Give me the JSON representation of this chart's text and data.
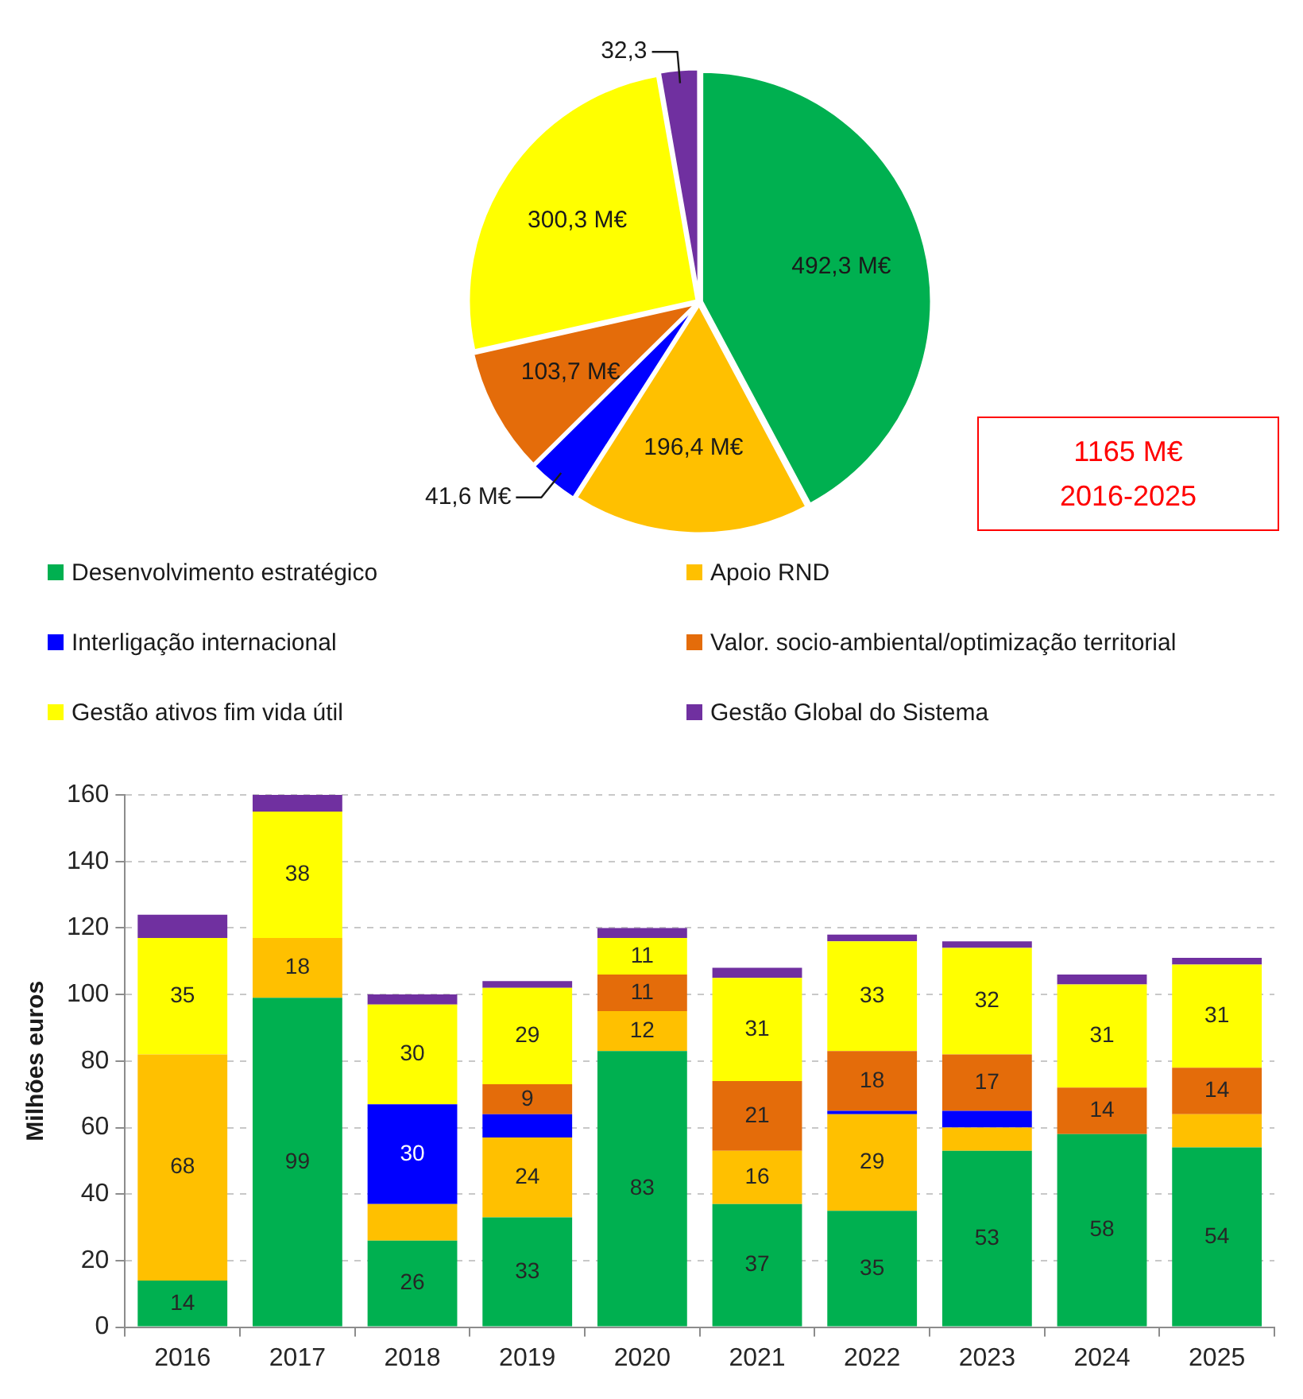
{
  "chart_data": [
    {
      "type": "pie",
      "categories": [
        "Desenvolvimento estratégico",
        "Apoio RND",
        "Interligação internacional",
        "Valor. socio-ambiental/optimização territorial",
        "Gestão ativos fim vida útil",
        "Gestão Global do Sistema"
      ],
      "values": [
        492.3,
        196.4,
        41.6,
        103.7,
        300.3,
        32.3
      ],
      "colors": [
        "#00b050",
        "#ffc000",
        "#0000ff",
        "#e46c0a",
        "#ffff00",
        "#7030a0"
      ],
      "value_labels": [
        "492,3 M€",
        "196,4 M€",
        "41,6 M€",
        "103,7 M€",
        "300,3 M€",
        "32,3"
      ],
      "legend": "bottom",
      "annotations": [
        "1165 M€ 2016-2025"
      ]
    },
    {
      "type": "bar",
      "categories": [
        "2016",
        "2017",
        "2018",
        "2019",
        "2020",
        "2021",
        "2022",
        "2023",
        "2024",
        "2025"
      ],
      "stacked": true,
      "ylabel": "Milhões euros",
      "ylim": [
        0,
        160
      ],
      "yticks": [
        0,
        20,
        40,
        60,
        80,
        100,
        120,
        140,
        160
      ],
      "grid": "y",
      "series": [
        {
          "color": "#00b050",
          "values": [
            14,
            99,
            26,
            33,
            83,
            37,
            35,
            53,
            58,
            54
          ],
          "value_labels": [
            "14",
            "99",
            "26",
            "33",
            "83",
            "37",
            "35",
            "53",
            "58",
            "54"
          ]
        },
        {
          "color": "#ffc000",
          "values": [
            68,
            18,
            11,
            24,
            12,
            16,
            29,
            7,
            0,
            10
          ],
          "value_labels": [
            "68",
            "18",
            null,
            "24",
            "12",
            "16",
            "29",
            null,
            null,
            null
          ]
        },
        {
          "color": "#0000ff",
          "values": [
            0,
            0,
            30,
            7,
            0,
            0,
            1,
            5,
            0,
            0
          ],
          "value_labels": [
            null,
            null,
            "30",
            null,
            null,
            null,
            null,
            null,
            null,
            null
          ]
        },
        {
          "color": "#e46c0a",
          "values": [
            0,
            0,
            0,
            9,
            11,
            21,
            18,
            17,
            14,
            14
          ],
          "value_labels": [
            null,
            null,
            null,
            "9",
            "11",
            "21",
            "18",
            "17",
            "14",
            "14"
          ]
        },
        {
          "color": "#ffff00",
          "values": [
            35,
            38,
            30,
            29,
            11,
            31,
            33,
            32,
            31,
            31
          ],
          "value_labels": [
            "35",
            "38",
            "30",
            "29",
            "11",
            "31",
            "33",
            "32",
            "31",
            "31"
          ]
        },
        {
          "color": "#7030a0",
          "values": [
            7,
            5,
            3,
            2,
            3,
            3,
            2,
            2,
            3,
            2
          ],
          "value_labels": [
            null,
            null,
            null,
            null,
            null,
            null,
            null,
            null,
            null,
            null
          ]
        }
      ]
    }
  ]
}
